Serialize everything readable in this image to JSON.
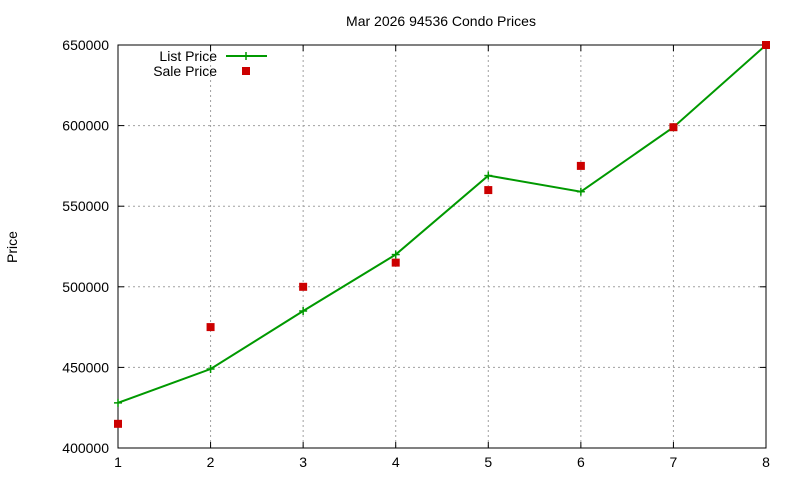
{
  "chart_data": {
    "type": "line",
    "title": "Mar 2026 94536 Condo Prices",
    "xlabel": "",
    "ylabel": "Price",
    "xlim": [
      1,
      8
    ],
    "ylim": [
      400000,
      650000
    ],
    "x_ticks": [
      "1",
      "2",
      "3",
      "4",
      "5",
      "6",
      "7",
      "8"
    ],
    "y_ticks": [
      "400000",
      "450000",
      "500000",
      "550000",
      "600000",
      "650000"
    ],
    "grid": true,
    "legend_position": "top-left",
    "series": [
      {
        "name": "List Price",
        "style": "line-with-plus-markers",
        "color": "#009900",
        "x": [
          1,
          2,
          3,
          4,
          5,
          6,
          7,
          8
        ],
        "y": [
          428000,
          449000,
          485000,
          520000,
          569000,
          559000,
          599000,
          650000
        ]
      },
      {
        "name": "Sale Price",
        "style": "square-points",
        "color": "#cc0000",
        "x": [
          1,
          2,
          3,
          4,
          5,
          6,
          7,
          8
        ],
        "y": [
          415000,
          475000,
          500000,
          515000,
          560000,
          575000,
          599000,
          650000
        ]
      }
    ]
  }
}
